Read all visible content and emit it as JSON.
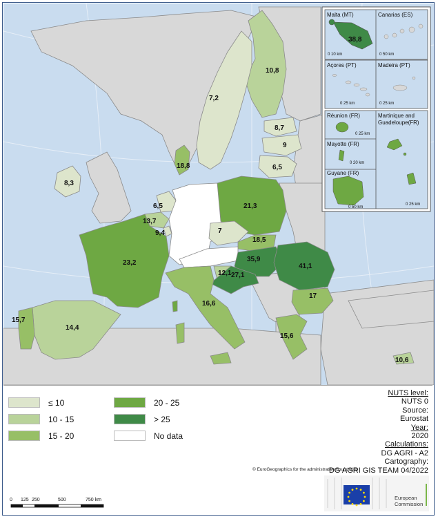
{
  "regions": [
    {
      "id": "MT",
      "value": "38,8",
      "cls": "gt25"
    },
    {
      "id": "FI",
      "value": "10,8",
      "cls": "b10_15"
    },
    {
      "id": "SE",
      "value": "7,2",
      "cls": "le10"
    },
    {
      "id": "EE",
      "value": "8,7",
      "cls": "le10"
    },
    {
      "id": "LV",
      "value": "9",
      "cls": "le10"
    },
    {
      "id": "LT",
      "value": "6,5",
      "cls": "le10"
    },
    {
      "id": "DK",
      "value": "18,8",
      "cls": "b15_20"
    },
    {
      "id": "IE",
      "value": "8,3",
      "cls": "le10"
    },
    {
      "id": "PL",
      "value": "21,3",
      "cls": "b20_25"
    },
    {
      "id": "NL",
      "value": "6,5",
      "cls": "le10"
    },
    {
      "id": "BE",
      "value": "13,7",
      "cls": "b10_15"
    },
    {
      "id": "LU",
      "value": "9,4",
      "cls": "le10"
    },
    {
      "id": "CZ",
      "value": "7",
      "cls": "le10"
    },
    {
      "id": "SK",
      "value": "18,5",
      "cls": "b15_20"
    },
    {
      "id": "FR",
      "value": "23,2",
      "cls": "b20_25"
    },
    {
      "id": "HU",
      "value": "35,9",
      "cls": "gt25"
    },
    {
      "id": "RO",
      "value": "41,1",
      "cls": "gt25"
    },
    {
      "id": "SI",
      "value": "12,1",
      "cls": "b10_15"
    },
    {
      "id": "HR",
      "value": "27,1",
      "cls": "gt25"
    },
    {
      "id": "BG",
      "value": "17",
      "cls": "b15_20"
    },
    {
      "id": "IT",
      "value": "16,6",
      "cls": "b15_20"
    },
    {
      "id": "PT",
      "value": "15,7",
      "cls": "b15_20"
    },
    {
      "id": "ES",
      "value": "14,4",
      "cls": "b10_15"
    },
    {
      "id": "EL",
      "value": "15,6",
      "cls": "b15_20"
    },
    {
      "id": "CY",
      "value": "10,6",
      "cls": "b10_15"
    },
    {
      "id": "DE",
      "value": "",
      "cls": "nodata"
    },
    {
      "id": "AT",
      "value": "",
      "cls": "nodata"
    }
  ],
  "colors": {
    "le10": "#dde5cc",
    "b10_15": "#b9d39a",
    "b15_20": "#97bf66",
    "b20_25": "#6ea843",
    "gt25": "#3f8a47",
    "nodata": "#ffffff",
    "nonEU": "#d8d8d8",
    "sea": "#c9dcef",
    "border": "#8a8a8a"
  },
  "insets": {
    "malta": "Malta (MT)",
    "canarias": "Canarias (ES)",
    "acores": "Açores (PT)",
    "madeira": "Madeira (PT)",
    "reunion": "Réunion (FR)",
    "martinique": "Martinique and",
    "guadeloupe": "Guadeloupe(FR)",
    "mayotte": "Mayotte (FR)",
    "guyane": "Guyane (FR)",
    "scale_malta": "0 10 km",
    "scale_canarias": "0 50 km",
    "scale_acores": "0 25 km",
    "scale_madeira": "0 25 km",
    "scale_reunion": "0 25 km",
    "scale_mayotte": "0 20 km",
    "scale_guyane": "0 50 km",
    "scale_martinique": "0 25 km"
  },
  "legend": [
    {
      "label": "≤ 10",
      "cls": "le10"
    },
    {
      "label": "10 - 15",
      "cls": "b10_15"
    },
    {
      "label": "15 - 20",
      "cls": "b15_20"
    },
    {
      "label": "20 - 25",
      "cls": "b20_25"
    },
    {
      "label": "> 25",
      "cls": "gt25"
    },
    {
      "label": "No data",
      "cls": "nodata"
    }
  ],
  "meta": {
    "nuts_level_title": "NUTS level:",
    "nuts_level": "NUTS 0",
    "source_title": "Source:",
    "source": "Eurostat",
    "year_title": "Year:",
    "year": "2020",
    "calc_title": "Calculations:",
    "calc": "DG AGRI - A2",
    "carto_title": "Cartography:",
    "carto": "DG AGRI GIS TEAM 04/2022",
    "credit": "© EuroGeographics for the administrative boundaries"
  },
  "scale": {
    "ticks": [
      "0",
      "125",
      "250",
      "500",
      "750 km"
    ]
  },
  "logo": {
    "line1": "European",
    "line2": "Commission"
  }
}
